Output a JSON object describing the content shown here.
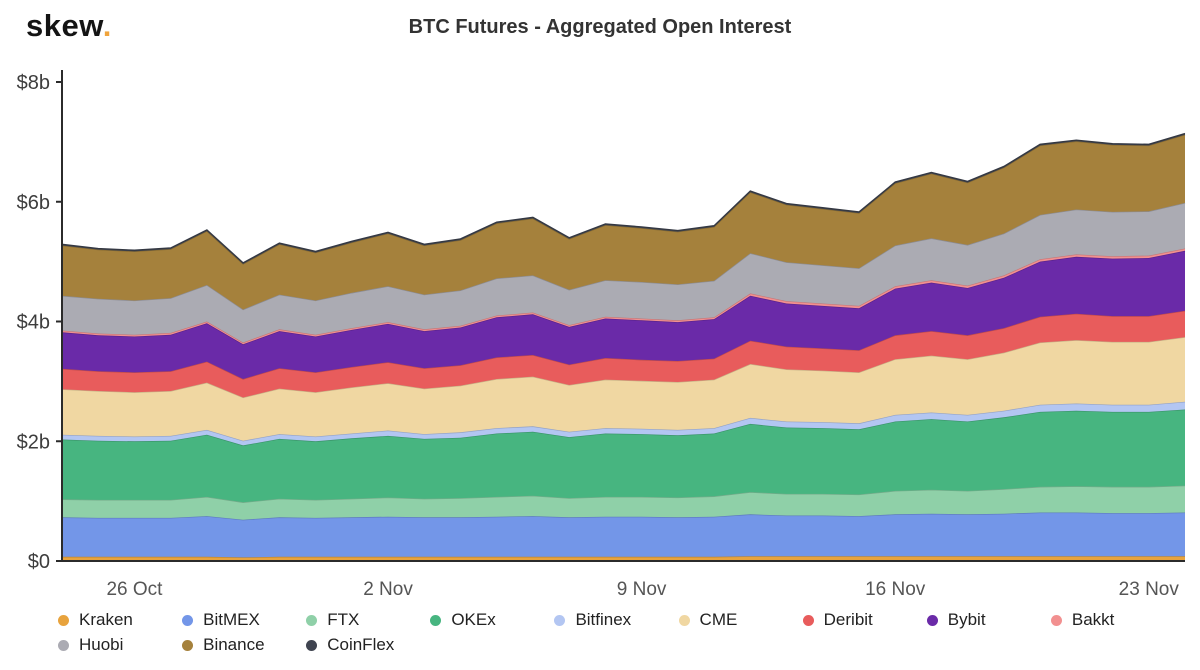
{
  "brand": {
    "name": "skew",
    "dot": ".",
    "accent": "#f0a43c"
  },
  "title": "BTC Futures - Aggregated Open Interest",
  "chart_data": {
    "type": "area",
    "stacked": true,
    "unit": "USD billions",
    "ylim": [
      0,
      8
    ],
    "grid": false,
    "legend_position": "bottom",
    "y_ticks": [
      {
        "value": 0,
        "label": "$0"
      },
      {
        "value": 2,
        "label": "$2b"
      },
      {
        "value": 4,
        "label": "$4b"
      },
      {
        "value": 6,
        "label": "$6b"
      },
      {
        "value": 8,
        "label": "$8b"
      }
    ],
    "x_dates": [
      "24 Oct",
      "25 Oct",
      "26 Oct",
      "27 Oct",
      "28 Oct",
      "29 Oct",
      "30 Oct",
      "31 Oct",
      "1 Nov",
      "2 Nov",
      "3 Nov",
      "4 Nov",
      "5 Nov",
      "6 Nov",
      "7 Nov",
      "8 Nov",
      "9 Nov",
      "10 Nov",
      "11 Nov",
      "12 Nov",
      "13 Nov",
      "14 Nov",
      "15 Nov",
      "16 Nov",
      "17 Nov",
      "18 Nov",
      "19 Nov",
      "20 Nov",
      "21 Nov",
      "22 Nov",
      "23 Nov",
      "24 Nov"
    ],
    "x_tick_marks": [
      {
        "index": 2,
        "label": "26 Oct"
      },
      {
        "index": 9,
        "label": "2 Nov"
      },
      {
        "index": 16,
        "label": "9 Nov"
      },
      {
        "index": 23,
        "label": "16 Nov"
      },
      {
        "index": 30,
        "label": "23 Nov"
      }
    ],
    "series": [
      {
        "name": "Kraken",
        "color": "#e8a33d",
        "values": [
          0.07,
          0.07,
          0.07,
          0.07,
          0.07,
          0.06,
          0.07,
          0.07,
          0.07,
          0.07,
          0.07,
          0.07,
          0.07,
          0.07,
          0.07,
          0.07,
          0.07,
          0.07,
          0.07,
          0.08,
          0.08,
          0.08,
          0.08,
          0.08,
          0.08,
          0.08,
          0.08,
          0.08,
          0.08,
          0.08,
          0.08,
          0.08
        ]
      },
      {
        "name": "BitMEX",
        "color": "#7396e8",
        "values": [
          0.66,
          0.65,
          0.65,
          0.65,
          0.68,
          0.63,
          0.66,
          0.65,
          0.66,
          0.67,
          0.66,
          0.66,
          0.67,
          0.68,
          0.66,
          0.67,
          0.67,
          0.66,
          0.67,
          0.7,
          0.68,
          0.68,
          0.67,
          0.7,
          0.71,
          0.7,
          0.71,
          0.73,
          0.73,
          0.72,
          0.72,
          0.73
        ]
      },
      {
        "name": "FTX",
        "color": "#8fd0a8",
        "values": [
          0.3,
          0.3,
          0.3,
          0.3,
          0.32,
          0.29,
          0.31,
          0.3,
          0.31,
          0.32,
          0.31,
          0.32,
          0.33,
          0.34,
          0.32,
          0.33,
          0.33,
          0.33,
          0.34,
          0.37,
          0.36,
          0.36,
          0.36,
          0.39,
          0.4,
          0.39,
          0.41,
          0.43,
          0.44,
          0.44,
          0.44,
          0.45
        ]
      },
      {
        "name": "OKEx",
        "color": "#47b580",
        "values": [
          1.0,
          0.99,
          0.98,
          0.99,
          1.04,
          0.95,
          1.0,
          0.98,
          1.01,
          1.03,
          1.0,
          1.01,
          1.06,
          1.07,
          1.02,
          1.06,
          1.05,
          1.04,
          1.05,
          1.14,
          1.11,
          1.1,
          1.09,
          1.16,
          1.18,
          1.16,
          1.2,
          1.25,
          1.26,
          1.25,
          1.25,
          1.27
        ]
      },
      {
        "name": "Bitfinex",
        "color": "#b3c6f2",
        "values": [
          0.08,
          0.08,
          0.08,
          0.08,
          0.08,
          0.08,
          0.08,
          0.08,
          0.08,
          0.09,
          0.08,
          0.09,
          0.09,
          0.09,
          0.09,
          0.09,
          0.09,
          0.09,
          0.09,
          0.1,
          0.1,
          0.1,
          0.1,
          0.11,
          0.11,
          0.11,
          0.11,
          0.12,
          0.12,
          0.12,
          0.12,
          0.13
        ]
      },
      {
        "name": "CME",
        "color": "#f0d7a2",
        "values": [
          0.76,
          0.75,
          0.74,
          0.75,
          0.79,
          0.72,
          0.76,
          0.74,
          0.77,
          0.79,
          0.76,
          0.78,
          0.82,
          0.83,
          0.78,
          0.81,
          0.8,
          0.8,
          0.81,
          0.9,
          0.87,
          0.86,
          0.85,
          0.93,
          0.95,
          0.93,
          0.97,
          1.04,
          1.06,
          1.05,
          1.05,
          1.08
        ]
      },
      {
        "name": "Deribit",
        "color": "#e85c5c",
        "values": [
          0.34,
          0.33,
          0.33,
          0.33,
          0.35,
          0.31,
          0.34,
          0.33,
          0.34,
          0.35,
          0.34,
          0.34,
          0.36,
          0.36,
          0.34,
          0.36,
          0.35,
          0.35,
          0.35,
          0.39,
          0.38,
          0.37,
          0.37,
          0.4,
          0.41,
          0.4,
          0.41,
          0.43,
          0.44,
          0.43,
          0.43,
          0.44
        ]
      },
      {
        "name": "Bybit",
        "color": "#6a2aa8",
        "values": [
          0.61,
          0.6,
          0.6,
          0.61,
          0.64,
          0.58,
          0.62,
          0.6,
          0.62,
          0.64,
          0.62,
          0.63,
          0.67,
          0.68,
          0.63,
          0.66,
          0.66,
          0.65,
          0.66,
          0.75,
          0.72,
          0.71,
          0.7,
          0.78,
          0.81,
          0.79,
          0.84,
          0.92,
          0.95,
          0.96,
          0.97,
          1.0
        ]
      },
      {
        "name": "Bakkt",
        "color": "#f29090",
        "values": [
          0.03,
          0.03,
          0.03,
          0.03,
          0.03,
          0.03,
          0.03,
          0.03,
          0.03,
          0.03,
          0.03,
          0.03,
          0.03,
          0.03,
          0.03,
          0.03,
          0.03,
          0.03,
          0.03,
          0.04,
          0.04,
          0.04,
          0.04,
          0.04,
          0.04,
          0.04,
          0.04,
          0.04,
          0.04,
          0.04,
          0.04,
          0.04
        ]
      },
      {
        "name": "Huobi",
        "color": "#ababb3",
        "values": [
          0.58,
          0.58,
          0.57,
          0.58,
          0.61,
          0.55,
          0.58,
          0.57,
          0.59,
          0.6,
          0.58,
          0.59,
          0.62,
          0.62,
          0.59,
          0.61,
          0.61,
          0.6,
          0.61,
          0.67,
          0.65,
          0.64,
          0.63,
          0.68,
          0.7,
          0.68,
          0.7,
          0.74,
          0.75,
          0.74,
          0.74,
          0.76
        ]
      },
      {
        "name": "Binance",
        "color": "#a5813c",
        "values": [
          0.84,
          0.82,
          0.82,
          0.82,
          0.9,
          0.76,
          0.84,
          0.8,
          0.84,
          0.88,
          0.82,
          0.84,
          0.92,
          0.95,
          0.85,
          0.92,
          0.9,
          0.88,
          0.9,
          1.02,
          0.96,
          0.94,
          0.92,
          1.04,
          1.08,
          1.04,
          1.1,
          1.16,
          1.14,
          1.12,
          1.1,
          1.14
        ]
      },
      {
        "name": "CoinFlex",
        "color": "#3f4450",
        "values": [
          0.02,
          0.02,
          0.02,
          0.02,
          0.02,
          0.02,
          0.02,
          0.02,
          0.02,
          0.02,
          0.02,
          0.02,
          0.02,
          0.02,
          0.02,
          0.02,
          0.02,
          0.02,
          0.02,
          0.02,
          0.02,
          0.02,
          0.02,
          0.02,
          0.02,
          0.02,
          0.02,
          0.02,
          0.02,
          0.02,
          0.02,
          0.02
        ]
      }
    ]
  }
}
